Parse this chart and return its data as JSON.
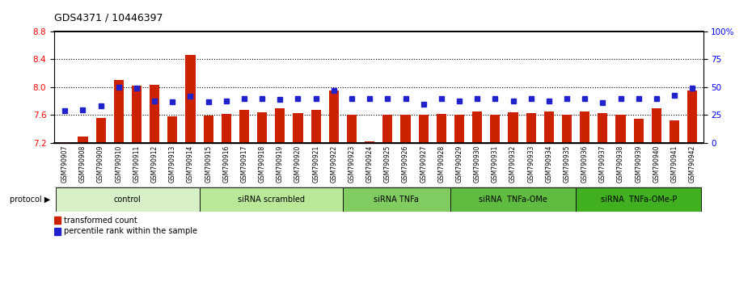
{
  "title": "GDS4371 / 10446397",
  "samples": [
    "GSM790907",
    "GSM790908",
    "GSM790909",
    "GSM790910",
    "GSM790911",
    "GSM790912",
    "GSM790913",
    "GSM790914",
    "GSM790915",
    "GSM790916",
    "GSM790917",
    "GSM790918",
    "GSM790919",
    "GSM790920",
    "GSM790921",
    "GSM790922",
    "GSM790923",
    "GSM790924",
    "GSM790925",
    "GSM790926",
    "GSM790927",
    "GSM790928",
    "GSM790929",
    "GSM790930",
    "GSM790931",
    "GSM790932",
    "GSM790933",
    "GSM790934",
    "GSM790935",
    "GSM790936",
    "GSM790937",
    "GSM790938",
    "GSM790939",
    "GSM790940",
    "GSM790941",
    "GSM790942"
  ],
  "bar_values": [
    7.21,
    7.29,
    7.56,
    8.1,
    8.02,
    8.04,
    7.58,
    8.46,
    7.59,
    7.62,
    7.68,
    7.64,
    7.7,
    7.63,
    7.68,
    7.95,
    7.6,
    7.22,
    7.61,
    7.6,
    7.6,
    7.62,
    7.6,
    7.65,
    7.61,
    7.64,
    7.63,
    7.65,
    7.6,
    7.65,
    7.63,
    7.6,
    7.55,
    7.7,
    7.53,
    7.95
  ],
  "percentile_values": [
    29,
    30,
    33,
    50,
    49,
    38,
    37,
    42,
    37,
    38,
    40,
    40,
    39,
    40,
    40,
    47,
    40,
    40,
    40,
    40,
    35,
    40,
    38,
    40,
    40,
    38,
    40,
    38,
    40,
    40,
    36,
    40,
    40,
    40,
    43,
    49
  ],
  "groups": [
    {
      "label": "control",
      "start": 0,
      "end": 8,
      "color": "#d8f0c8"
    },
    {
      "label": "siRNA scrambled",
      "start": 8,
      "end": 16,
      "color": "#b8e898"
    },
    {
      "label": "siRNA TNFa",
      "start": 16,
      "end": 22,
      "color": "#80cc60"
    },
    {
      "label": "siRNA  TNFa-OMe",
      "start": 22,
      "end": 29,
      "color": "#60bc40"
    },
    {
      "label": "siRNA  TNFa-OMe-P",
      "start": 29,
      "end": 36,
      "color": "#40b020"
    }
  ],
  "ylim_left": [
    7.2,
    8.8
  ],
  "ylim_right": [
    0,
    100
  ],
  "yticks_left": [
    7.2,
    7.6,
    8.0,
    8.4,
    8.8
  ],
  "yticks_right": [
    0,
    25,
    50,
    75,
    100
  ],
  "bar_color": "#cc2200",
  "dot_color": "#2222cc",
  "legend_items": [
    {
      "label": "transformed count",
      "color": "#cc2200"
    },
    {
      "label": "percentile rank within the sample",
      "color": "#2222cc"
    }
  ]
}
